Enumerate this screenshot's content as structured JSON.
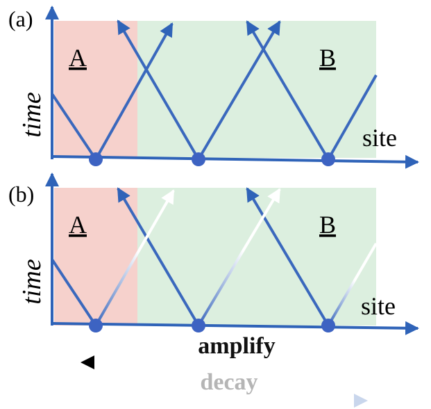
{
  "panel_a": {
    "label": "(a)",
    "y_axis_label": "time",
    "x_axis_label": "site",
    "region_a_label": "A",
    "region_b_label": "B"
  },
  "panel_b": {
    "label": "(b)",
    "y_axis_label": "time",
    "x_axis_label": "site",
    "region_a_label": "A",
    "region_b_label": "B"
  },
  "arrows": {
    "amplify_label": "amplify",
    "decay_label": "decay"
  },
  "colors": {
    "axis_blue": "#2f63b8",
    "line_blue": "#3a68bd",
    "dot_blue": "#3d63c2",
    "region_a_fill": "#f6d1cc",
    "region_b_fill": "#dcefdf",
    "amplify_text": "#111111",
    "decay_text": "#b5b5b5"
  }
}
